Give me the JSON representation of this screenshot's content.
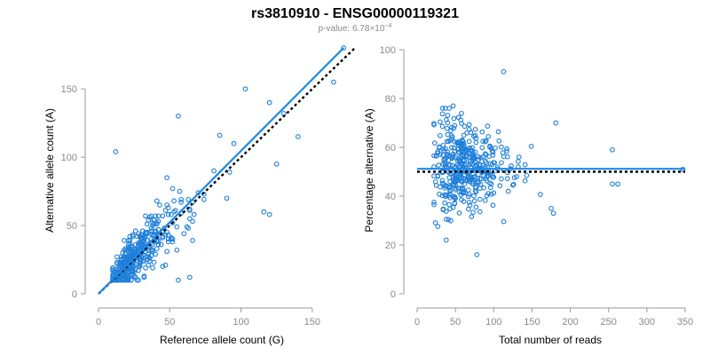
{
  "header": {
    "title": "rs3810910 - ENSG00000119321",
    "pvalue_label": "p-value: ",
    "pvalue_mantissa": "6.78",
    "pvalue_times": "×10",
    "pvalue_exponent": "−4"
  },
  "colors": {
    "points": "#1f7fd9",
    "fit_line": "#1e88e5",
    "reference_line": "#000000",
    "axis": "#9a9a9a"
  },
  "chart_data": [
    {
      "type": "scatter",
      "id": "left",
      "xlabel": "Reference allele count (G)",
      "ylabel": "Alternative allele count (A)",
      "xlim": [
        0,
        175
      ],
      "ylim": [
        0,
        180
      ],
      "xticks": [
        0,
        50,
        100,
        150
      ],
      "yticks": [
        0,
        50,
        100,
        150
      ],
      "fit_line": {
        "style": "solid",
        "from": [
          0,
          0
        ],
        "to": [
          172,
          180
        ]
      },
      "reference_line": {
        "style": "dotted",
        "from": [
          0,
          0
        ],
        "to": [
          180,
          180
        ]
      },
      "points_sample_outliers": [
        [
          172,
          180
        ],
        [
          165,
          155
        ],
        [
          103,
          150
        ],
        [
          12,
          104
        ],
        [
          56,
          130
        ],
        [
          64,
          12
        ],
        [
          116,
          60
        ],
        [
          120,
          58
        ],
        [
          125,
          95
        ],
        [
          140,
          115
        ],
        [
          120,
          140
        ],
        [
          130,
          132
        ],
        [
          85,
          116
        ],
        [
          95,
          110
        ]
      ],
      "generator": {
        "n": 420,
        "seed": 3810910,
        "x_median": 25,
        "slope": 1.03
      }
    },
    {
      "type": "scatter",
      "id": "right",
      "xlabel": "Total number of reads",
      "ylabel": "Percentage alternative (A)",
      "xlim": [
        0,
        350
      ],
      "ylim": [
        0,
        100
      ],
      "xticks": [
        0,
        50,
        100,
        150,
        200,
        250,
        300,
        350
      ],
      "yticks": [
        0,
        20,
        40,
        60,
        80,
        100
      ],
      "fit_line": {
        "style": "solid",
        "y": 51.2
      },
      "reference_line": {
        "style": "dotted",
        "y": 50
      },
      "points_sample_outliers": [
        [
          113,
          91
        ],
        [
          78,
          16
        ],
        [
          47,
          77
        ],
        [
          181,
          70
        ],
        [
          347,
          51
        ],
        [
          255,
          59
        ],
        [
          175,
          35
        ],
        [
          178,
          33
        ],
        [
          255,
          45
        ],
        [
          262,
          45
        ]
      ],
      "generator": {
        "n": 420,
        "seed": 119321,
        "center": 51,
        "spread": 8
      }
    }
  ]
}
